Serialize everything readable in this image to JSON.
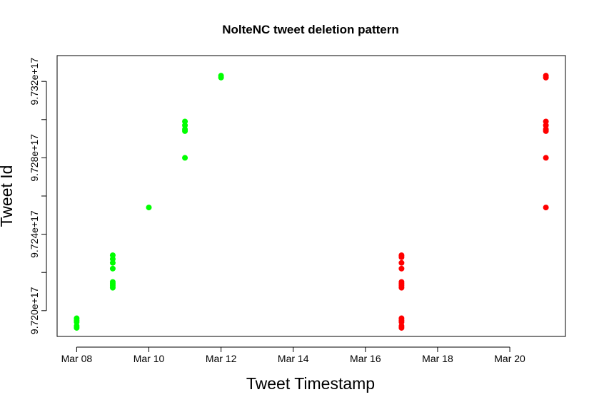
{
  "chart_data": {
    "type": "scatter",
    "title": "NolteNC tweet deletion pattern",
    "xlabel": "Tweet Timestamp",
    "ylabel": "Tweet Id",
    "x_axis_type": "date",
    "xlim": [
      "2018-03-07 11:00",
      "2018-03-21 13:00"
    ],
    "ylim": [
      9.71865e+17,
      9.73335e+17
    ],
    "x_ticks": [
      "2018-03-08",
      "2018-03-10",
      "2018-03-12",
      "2018-03-14",
      "2018-03-16",
      "2018-03-18",
      "2018-03-20"
    ],
    "x_tick_labels": [
      "Mar 08",
      "Mar 10",
      "Mar 12",
      "Mar 14",
      "Mar 16",
      "Mar 18",
      "Mar 20"
    ],
    "y_ticks": [
      9.72e+17,
      9.724e+17,
      9.728e+17,
      9.732e+17
    ],
    "y_tick_labels": [
      "9.720e+17",
      "9.724e+17",
      "9.728e+17",
      "9.732e+17"
    ],
    "grid": false,
    "legend": "none",
    "series": [
      {
        "color": "#00ff00",
        "points": [
          {
            "x": "2018-03-08",
            "y": 9.7196e+17
          },
          {
            "x": "2018-03-08",
            "y": 9.7195e+17
          },
          {
            "x": "2018-03-08",
            "y": 9.7194e+17
          },
          {
            "x": "2018-03-08",
            "y": 9.7192e+17
          },
          {
            "x": "2018-03-08",
            "y": 9.7191e+17
          },
          {
            "x": "2018-03-09",
            "y": 9.7229e+17
          },
          {
            "x": "2018-03-09",
            "y": 9.7227e+17
          },
          {
            "x": "2018-03-09",
            "y": 9.7225e+17
          },
          {
            "x": "2018-03-09",
            "y": 9.7222e+17
          },
          {
            "x": "2018-03-09",
            "y": 9.7215e+17
          },
          {
            "x": "2018-03-09",
            "y": 9.7214e+17
          },
          {
            "x": "2018-03-09",
            "y": 9.7213e+17
          },
          {
            "x": "2018-03-09",
            "y": 9.7212e+17
          },
          {
            "x": "2018-03-10",
            "y": 9.7254e+17
          },
          {
            "x": "2018-03-11",
            "y": 9.7299e+17
          },
          {
            "x": "2018-03-11",
            "y": 9.7297e+17
          },
          {
            "x": "2018-03-11",
            "y": 9.7295e+17
          },
          {
            "x": "2018-03-11",
            "y": 9.7294e+17
          },
          {
            "x": "2018-03-11",
            "y": 9.728e+17
          },
          {
            "x": "2018-03-12",
            "y": 9.7323e+17
          },
          {
            "x": "2018-03-12",
            "y": 9.7322e+17
          }
        ]
      },
      {
        "color": "#ff0000",
        "points": [
          {
            "x": "2018-03-17",
            "y": 9.7229e+17
          },
          {
            "x": "2018-03-17",
            "y": 9.7228e+17
          },
          {
            "x": "2018-03-17",
            "y": 9.7225e+17
          },
          {
            "x": "2018-03-17",
            "y": 9.7222e+17
          },
          {
            "x": "2018-03-17",
            "y": 9.7215e+17
          },
          {
            "x": "2018-03-17",
            "y": 9.7214e+17
          },
          {
            "x": "2018-03-17",
            "y": 9.7213e+17
          },
          {
            "x": "2018-03-17",
            "y": 9.7212e+17
          },
          {
            "x": "2018-03-17",
            "y": 9.7196e+17
          },
          {
            "x": "2018-03-17",
            "y": 9.7195e+17
          },
          {
            "x": "2018-03-17",
            "y": 9.7194e+17
          },
          {
            "x": "2018-03-17",
            "y": 9.7192e+17
          },
          {
            "x": "2018-03-17",
            "y": 9.7191e+17
          },
          {
            "x": "2018-03-21",
            "y": 9.7323e+17
          },
          {
            "x": "2018-03-21",
            "y": 9.7322e+17
          },
          {
            "x": "2018-03-21",
            "y": 9.7299e+17
          },
          {
            "x": "2018-03-21",
            "y": 9.7297e+17
          },
          {
            "x": "2018-03-21",
            "y": 9.7295e+17
          },
          {
            "x": "2018-03-21",
            "y": 9.7294e+17
          },
          {
            "x": "2018-03-21",
            "y": 9.728e+17
          },
          {
            "x": "2018-03-21",
            "y": 9.7254e+17
          }
        ]
      }
    ]
  }
}
